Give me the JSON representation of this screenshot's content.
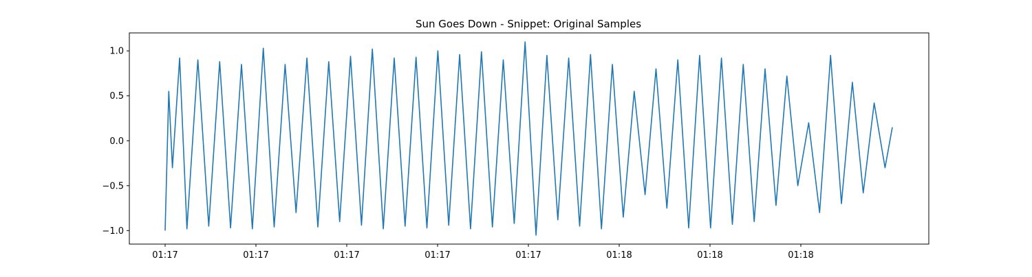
{
  "chart_data": {
    "type": "line",
    "title": "Sun Goes Down - Snippet: Original Samples",
    "xlabel": "",
    "ylabel": "",
    "ylim": [
      -1.15,
      1.2
    ],
    "yticks": [
      -1.0,
      -0.5,
      0.0,
      0.5,
      1.0
    ],
    "ytick_labels": [
      "−1.0",
      "−0.5",
      "0.0",
      "0.5",
      "1.0"
    ],
    "xtick_labels": [
      "01:17",
      "01:17",
      "01:17",
      "01:17",
      "01:17",
      "01:18",
      "01:18",
      "01:18"
    ],
    "grid": false,
    "legend": "none",
    "series": [
      {
        "color": "#1f77b4",
        "x": [
          0.0,
          0.5,
          1.0,
          2.0,
          3.0,
          4.5,
          6.0,
          7.5,
          9.0,
          10.5,
          12.0,
          13.5,
          15.0,
          16.5,
          18.0,
          19.5,
          21.0,
          22.5,
          24.0,
          25.5,
          27.0,
          28.5,
          30.0,
          31.5,
          33.0,
          34.5,
          36.0,
          37.5,
          39.0,
          40.5,
          42.0,
          43.5,
          45.0,
          46.5,
          48.0,
          49.5,
          51.0,
          52.5,
          54.0,
          55.5,
          57.0,
          58.5,
          60.0,
          61.5,
          63.0,
          64.5,
          66.0,
          67.5,
          69.0,
          70.5,
          72.0,
          73.5,
          75.0,
          76.5,
          78.0,
          79.5,
          81.0,
          82.5,
          84.0,
          85.5,
          87.0,
          88.5,
          90.0,
          91.5,
          93.0,
          94.5,
          96.0,
          97.5,
          99.0,
          100.0
        ],
        "y": [
          -1.0,
          0.55,
          -0.3,
          0.92,
          -0.98,
          0.9,
          -0.95,
          0.88,
          -0.97,
          0.85,
          -0.98,
          1.03,
          -0.96,
          0.85,
          -0.8,
          0.92,
          -0.96,
          0.88,
          -0.9,
          0.94,
          -0.94,
          1.02,
          -0.98,
          0.92,
          -0.95,
          0.93,
          -0.97,
          1.0,
          -0.94,
          0.96,
          -0.98,
          0.99,
          -0.96,
          0.9,
          -0.92,
          1.1,
          -1.05,
          0.95,
          -0.88,
          0.92,
          -0.95,
          0.96,
          -0.98,
          0.85,
          -0.85,
          0.55,
          -0.6,
          0.8,
          -0.75,
          0.9,
          -0.97,
          0.95,
          -0.97,
          0.92,
          -0.93,
          0.85,
          -0.9,
          0.8,
          -0.72,
          0.72,
          -0.5,
          0.2,
          -0.8,
          0.95,
          -0.7,
          0.65,
          -0.58,
          0.42,
          -0.3,
          0.15
        ]
      }
    ]
  }
}
